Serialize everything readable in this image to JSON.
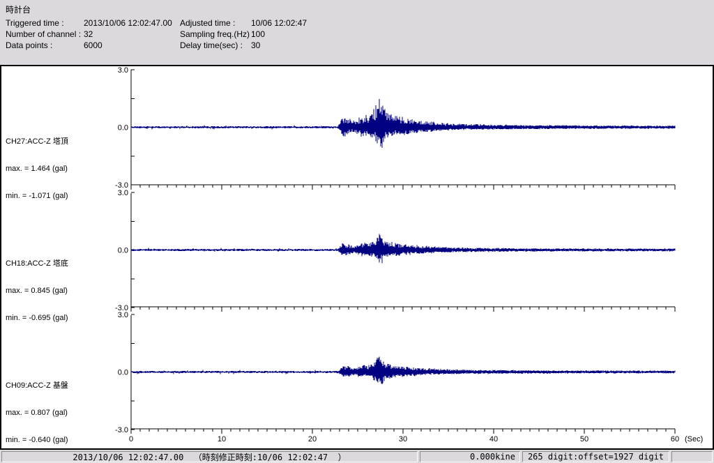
{
  "header": {
    "title": "時計台",
    "left_fields": [
      {
        "label": "Triggered time :",
        "value": "2013/10/06 12:02:47.00"
      },
      {
        "label": "Number of channel :",
        "value": "32"
      },
      {
        "label": "Data points :",
        "value": "6000"
      }
    ],
    "right_fields": [
      {
        "label": "Adjusted time :",
        "value": "10/06 12:02:47"
      },
      {
        "label": "Sampling freq.(Hz) :",
        "value": "100"
      },
      {
        "label": "Delay time(sec) :",
        "value": "30"
      }
    ]
  },
  "channels": [
    {
      "label": "CH27:ACC-Z 塔頂",
      "max_label": "max. = 1.464 (gal)",
      "min_label": "min. = -1.071 (gal)"
    },
    {
      "label": "CH18:ACC-Z 塔底",
      "max_label": "max. = 0.845 (gal)",
      "min_label": "min. = -0.695 (gal)"
    },
    {
      "label": "CH09:ACC-Z 基盤",
      "max_label": "max. = 0.807 (gal)",
      "min_label": "min. = -0.640 (gal)"
    }
  ],
  "chart_data": {
    "type": "line",
    "title": "",
    "x_range_sec": [
      0,
      60
    ],
    "xticks": [
      0,
      10,
      20,
      30,
      40,
      50,
      60
    ],
    "x_unit": "(Sec)",
    "ylim": [
      -3.0,
      3.0
    ],
    "ytick_gals": [
      3.0,
      0.0,
      -3.0
    ],
    "ytick_labels": [
      "3.0",
      "0.0",
      "-3.0"
    ],
    "minor_tick_interval_sec": 1,
    "sampling_hz": 100,
    "data_points": 6000,
    "event": {
      "start_sec": 22.8,
      "peak_sec": 27.4
    },
    "series": [
      {
        "name": "CH27:ACC-Z 塔頂",
        "max_gal": 1.464,
        "min_gal": -1.071,
        "seed": 101
      },
      {
        "name": "CH18:ACC-Z 塔底",
        "max_gal": 0.845,
        "min_gal": -0.695,
        "seed": 202
      },
      {
        "name": "CH09:ACC-Z 基盤",
        "max_gal": 0.807,
        "min_gal": -0.64,
        "seed": 303
      }
    ],
    "waveform_color": "#000080",
    "axis_color": "#000000",
    "noise_floor_gal": 0.05
  },
  "status_bar": {
    "time_text": "2013/10/06 12:02:47.00  （時刻修正時刻:10/06 12:02:47  ）",
    "kine_text": "0.000kine",
    "digit_text": "265 digit:offset=1927 digit"
  }
}
